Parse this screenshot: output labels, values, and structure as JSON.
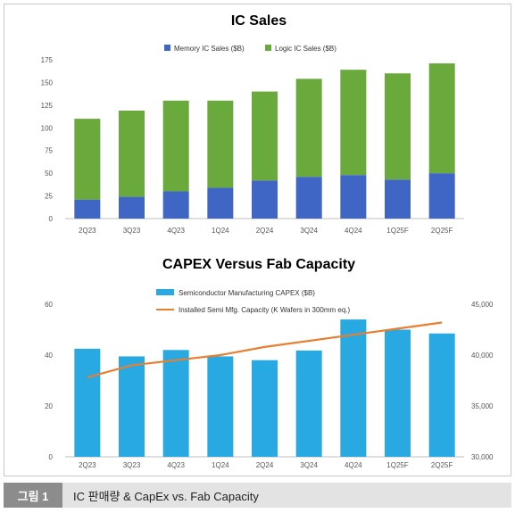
{
  "chart_data": [
    {
      "type": "bar",
      "title": "IC Sales",
      "stacked": true,
      "categories": [
        "2Q23",
        "3Q23",
        "4Q23",
        "1Q24",
        "2Q24",
        "3Q24",
        "4Q24",
        "1Q25F",
        "2Q25F"
      ],
      "series": [
        {
          "name": "Memory IC Sales ($B)",
          "color": "#3f66c4",
          "values": [
            21,
            24,
            30,
            34,
            42,
            46,
            48,
            43,
            50
          ]
        },
        {
          "name": "Logic IC Sales ($B)",
          "color": "#6aaa3c",
          "values": [
            89,
            95,
            100,
            96,
            98,
            108,
            116,
            117,
            121
          ]
        }
      ],
      "yticks": [
        "0",
        "25",
        "50",
        "75",
        "100",
        "125",
        "150",
        "175"
      ],
      "ylim": [
        0,
        175
      ],
      "legend": "top-center",
      "grid": false
    },
    {
      "type": "bar+line",
      "title": "CAPEX Versus Fab Capacity",
      "categories": [
        "2Q23",
        "3Q23",
        "4Q23",
        "1Q24",
        "2Q24",
        "3Q24",
        "4Q24",
        "1Q25F",
        "2Q25F"
      ],
      "series": [
        {
          "name": "Semiconductor Manufacturing CAPEX ($B)",
          "type": "bar",
          "axis": "left",
          "color": "#29a9e1",
          "values": [
            42.5,
            39.5,
            42,
            39.5,
            38,
            41.8,
            54,
            50,
            48.5
          ]
        },
        {
          "name": "Installed Semi Mfg. Capacity (K Wafers in 300mm eq.)",
          "type": "line",
          "axis": "right",
          "color": "#e87e2e",
          "values": [
            37800,
            39000,
            39500,
            40000,
            40800,
            41400,
            42000,
            42600,
            43200
          ]
        }
      ],
      "yticks_left": [
        "0",
        "20",
        "40",
        "60"
      ],
      "ylim_left": [
        0,
        60
      ],
      "yticks_right": [
        "30,000",
        "35,000",
        "40,000",
        "45,000"
      ],
      "ylim_right": [
        30000,
        45000
      ],
      "legend": "top-center",
      "grid": false
    }
  ],
  "caption": {
    "label": "그림 1",
    "text": "IC 판매량 & CapEx vs. Fab Capacity"
  }
}
